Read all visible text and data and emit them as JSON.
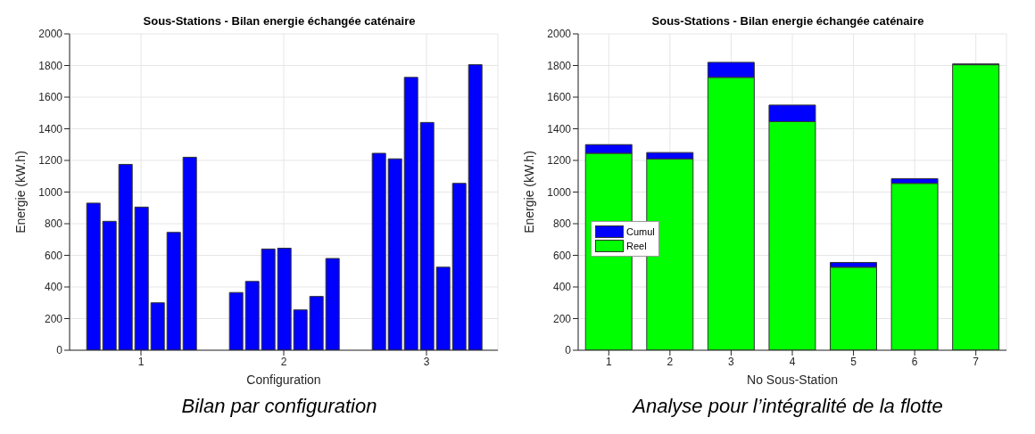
{
  "chart_data": [
    {
      "type": "bar",
      "title": "Sous-Stations - Bilan energie échangée caténaire",
      "xlabel": "Configuration",
      "ylabel": "Energie (kW.h)",
      "categories": [
        "1",
        "2",
        "3"
      ],
      "series": [
        {
          "color": "#0000ff",
          "values": [
            930,
            365,
            1245
          ]
        },
        {
          "color": "#0000ff",
          "values": [
            815,
            435,
            1210
          ]
        },
        {
          "color": "#0000ff",
          "values": [
            1175,
            640,
            1725
          ]
        },
        {
          "color": "#0000ff",
          "values": [
            905,
            645,
            1440
          ]
        },
        {
          "color": "#0000ff",
          "values": [
            300,
            255,
            525
          ]
        },
        {
          "color": "#0000ff",
          "values": [
            745,
            340,
            1055
          ]
        },
        {
          "color": "#0000ff",
          "values": [
            1220,
            580,
            1805
          ]
        }
      ],
      "ylim": [
        0,
        2000
      ],
      "yticks": [
        0,
        200,
        400,
        600,
        800,
        1000,
        1200,
        1400,
        1600,
        1800,
        2000
      ],
      "grid": true,
      "legend": false,
      "annotations": [
        "Bilan par configuration"
      ]
    },
    {
      "type": "bar",
      "title": "Sous-Stations - Bilan energie échangée caténaire",
      "xlabel": "No Sous-Station",
      "ylabel": "Energie (kW.h)",
      "categories": [
        "1",
        "2",
        "3",
        "4",
        "5",
        "6",
        "7"
      ],
      "stacked": true,
      "series": [
        {
          "name": "Reel",
          "color": "#00ff00",
          "values": [
            1245,
            1210,
            1725,
            1445,
            525,
            1055,
            1805
          ]
        },
        {
          "name": "Cumul",
          "color": "#0000ff",
          "values": [
            55,
            40,
            95,
            105,
            30,
            30,
            5
          ]
        }
      ],
      "ylim": [
        0,
        2000
      ],
      "yticks": [
        0,
        200,
        400,
        600,
        800,
        1000,
        1200,
        1400,
        1600,
        1800,
        2000
      ],
      "grid": true,
      "legend": "left",
      "annotations": [
        "Analyse pour l’intégralité de la flotte"
      ]
    }
  ]
}
